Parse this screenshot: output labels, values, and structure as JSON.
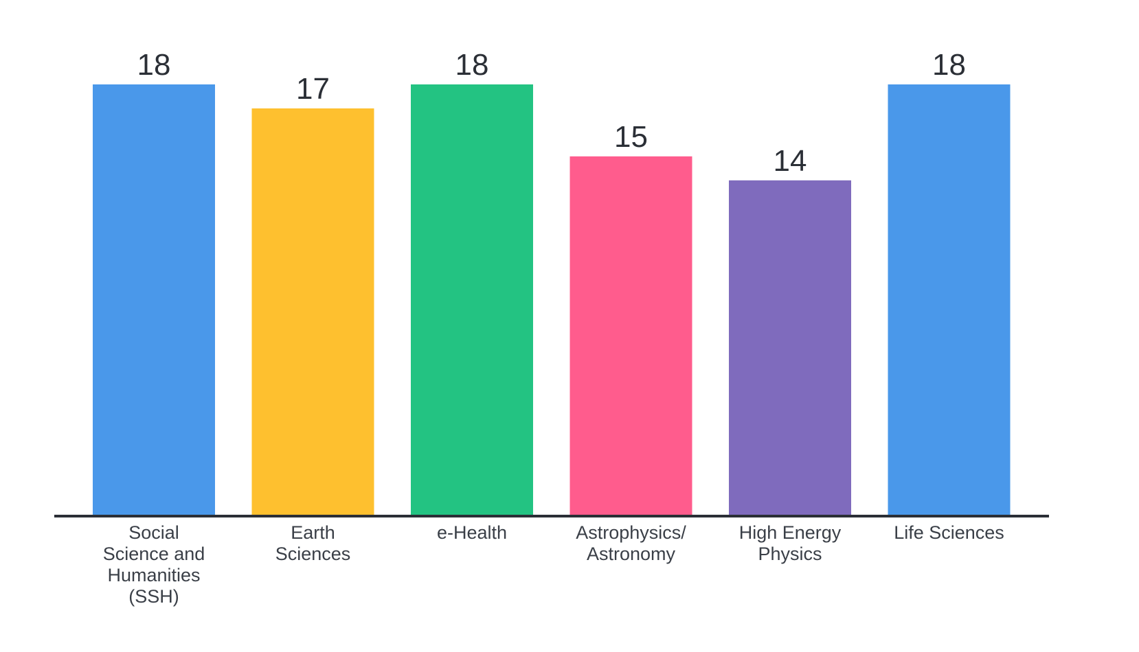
{
  "chart_data": {
    "type": "bar",
    "categories": [
      [
        "Social",
        "Science and",
        "Humanities",
        "(SSH)"
      ],
      [
        "Earth",
        "Sciences"
      ],
      [
        "e-Health"
      ],
      [
        "Astrophysics/",
        "Astronomy"
      ],
      [
        "High Energy",
        "Physics"
      ],
      [
        "Life Sciences"
      ]
    ],
    "values": [
      18,
      17,
      18,
      15,
      14,
      18
    ],
    "colors": [
      "#4a98ea",
      "#fec02f",
      "#23c382",
      "#ff5c8d",
      "#7f6bbd",
      "#4a98ea"
    ],
    "title": "",
    "xlabel": "",
    "ylabel": "",
    "ylim": [
      0,
      18
    ],
    "grid": false,
    "legend": "none",
    "axis_color": "#2b2f36"
  }
}
